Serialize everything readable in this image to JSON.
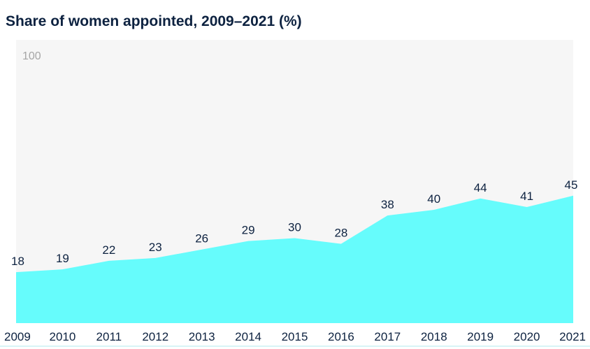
{
  "chart_data": {
    "type": "area",
    "title": "Share of women appointed, 2009–2021 (%)",
    "x": [
      "2009",
      "2010",
      "2011",
      "2012",
      "2013",
      "2014",
      "2015",
      "2016",
      "2017",
      "2018",
      "2019",
      "2020",
      "2021"
    ],
    "values": [
      18,
      19,
      22,
      23,
      26,
      29,
      30,
      28,
      38,
      40,
      44,
      41,
      45
    ],
    "ylim": [
      0,
      100
    ],
    "y_tick_labels": [
      "100"
    ],
    "xlabel": "",
    "ylabel": "",
    "grid": false,
    "legend": "none",
    "colors": {
      "area_fill": "#66fcfc",
      "plot_background": "#f6f6f6",
      "label_text": "#0d2240",
      "tick_text": "#a6a6a6"
    }
  }
}
